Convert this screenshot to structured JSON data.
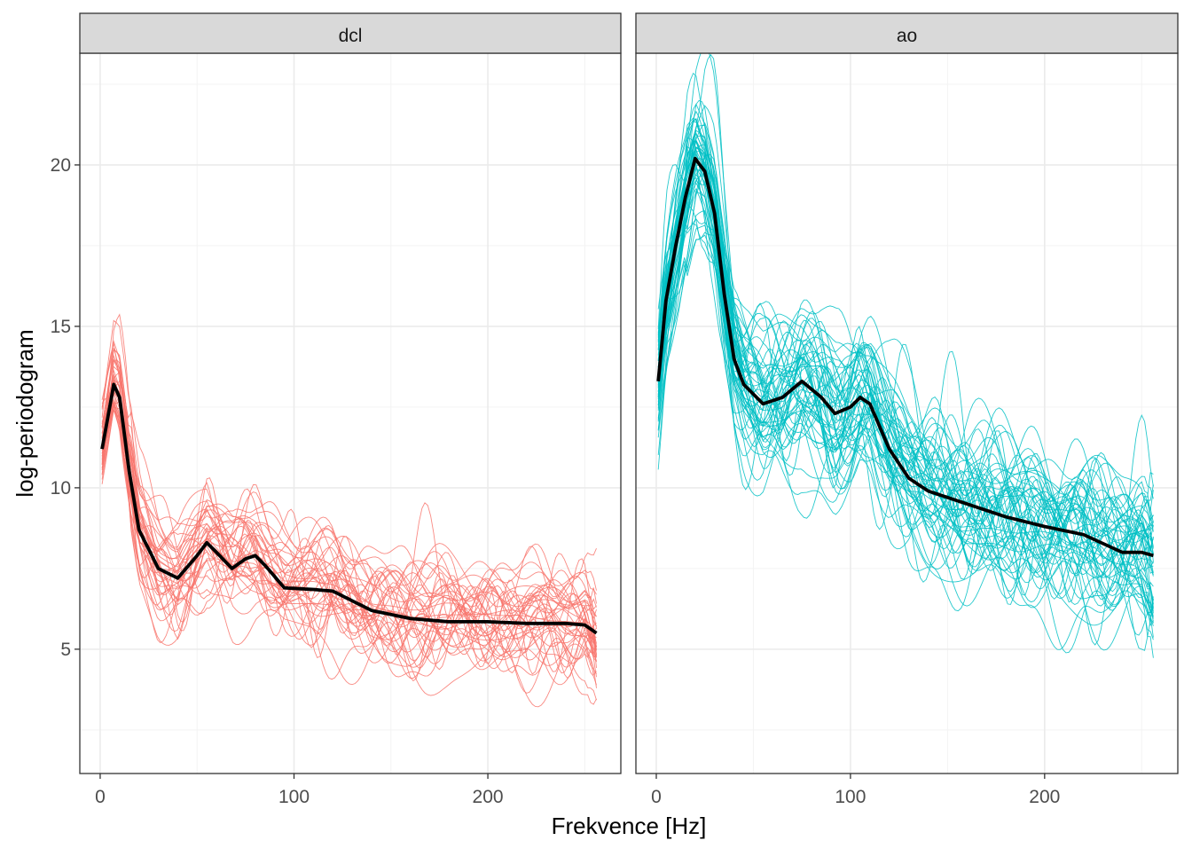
{
  "chart_data": {
    "type": "line",
    "xlabel": "Frekvence [Hz]",
    "ylabel": "log-periodogram",
    "xlim": [
      -10.5,
      268.6
    ],
    "ylim": [
      1.15,
      23.46
    ],
    "x_ticks": [
      0,
      100,
      200
    ],
    "x_tick_labels": [
      "0",
      "100",
      "200"
    ],
    "y_ticks": [
      5,
      10,
      15,
      20
    ],
    "y_tick_labels": [
      "5",
      "10",
      "15",
      "20"
    ],
    "grid": true,
    "legend": "none",
    "panels": [
      {
        "strip": "dcl",
        "color": "#F8766D",
        "n_curves": 40,
        "noise_sd": 1.1,
        "mean_series": {
          "name": "dcl mean",
          "x": [
            1,
            7,
            10,
            15,
            20,
            30,
            40,
            50,
            55,
            60,
            68,
            75,
            80,
            85,
            95,
            110,
            120,
            130,
            140,
            160,
            180,
            200,
            220,
            240,
            250,
            256
          ],
          "y": [
            11.2,
            13.2,
            12.8,
            10.5,
            8.7,
            7.5,
            7.2,
            7.9,
            8.3,
            8.0,
            7.5,
            7.8,
            7.9,
            7.6,
            6.9,
            6.85,
            6.8,
            6.5,
            6.2,
            5.95,
            5.85,
            5.85,
            5.8,
            5.8,
            5.75,
            5.5
          ]
        }
      },
      {
        "strip": "ao",
        "color": "#00BFC4",
        "n_curves": 55,
        "noise_sd": 1.3,
        "mean_series": {
          "name": "ao mean",
          "x": [
            1,
            5,
            10,
            15,
            20,
            25,
            30,
            35,
            40,
            45,
            55,
            65,
            75,
            85,
            92,
            100,
            105,
            110,
            120,
            130,
            140,
            160,
            180,
            200,
            220,
            240,
            250,
            256
          ],
          "y": [
            13.3,
            15.8,
            17.5,
            19.0,
            20.2,
            19.8,
            18.5,
            16.0,
            14.0,
            13.2,
            12.6,
            12.8,
            13.3,
            12.8,
            12.3,
            12.5,
            12.8,
            12.6,
            11.2,
            10.3,
            9.9,
            9.5,
            9.1,
            8.8,
            8.55,
            8.0,
            8.0,
            7.9
          ]
        }
      }
    ]
  }
}
